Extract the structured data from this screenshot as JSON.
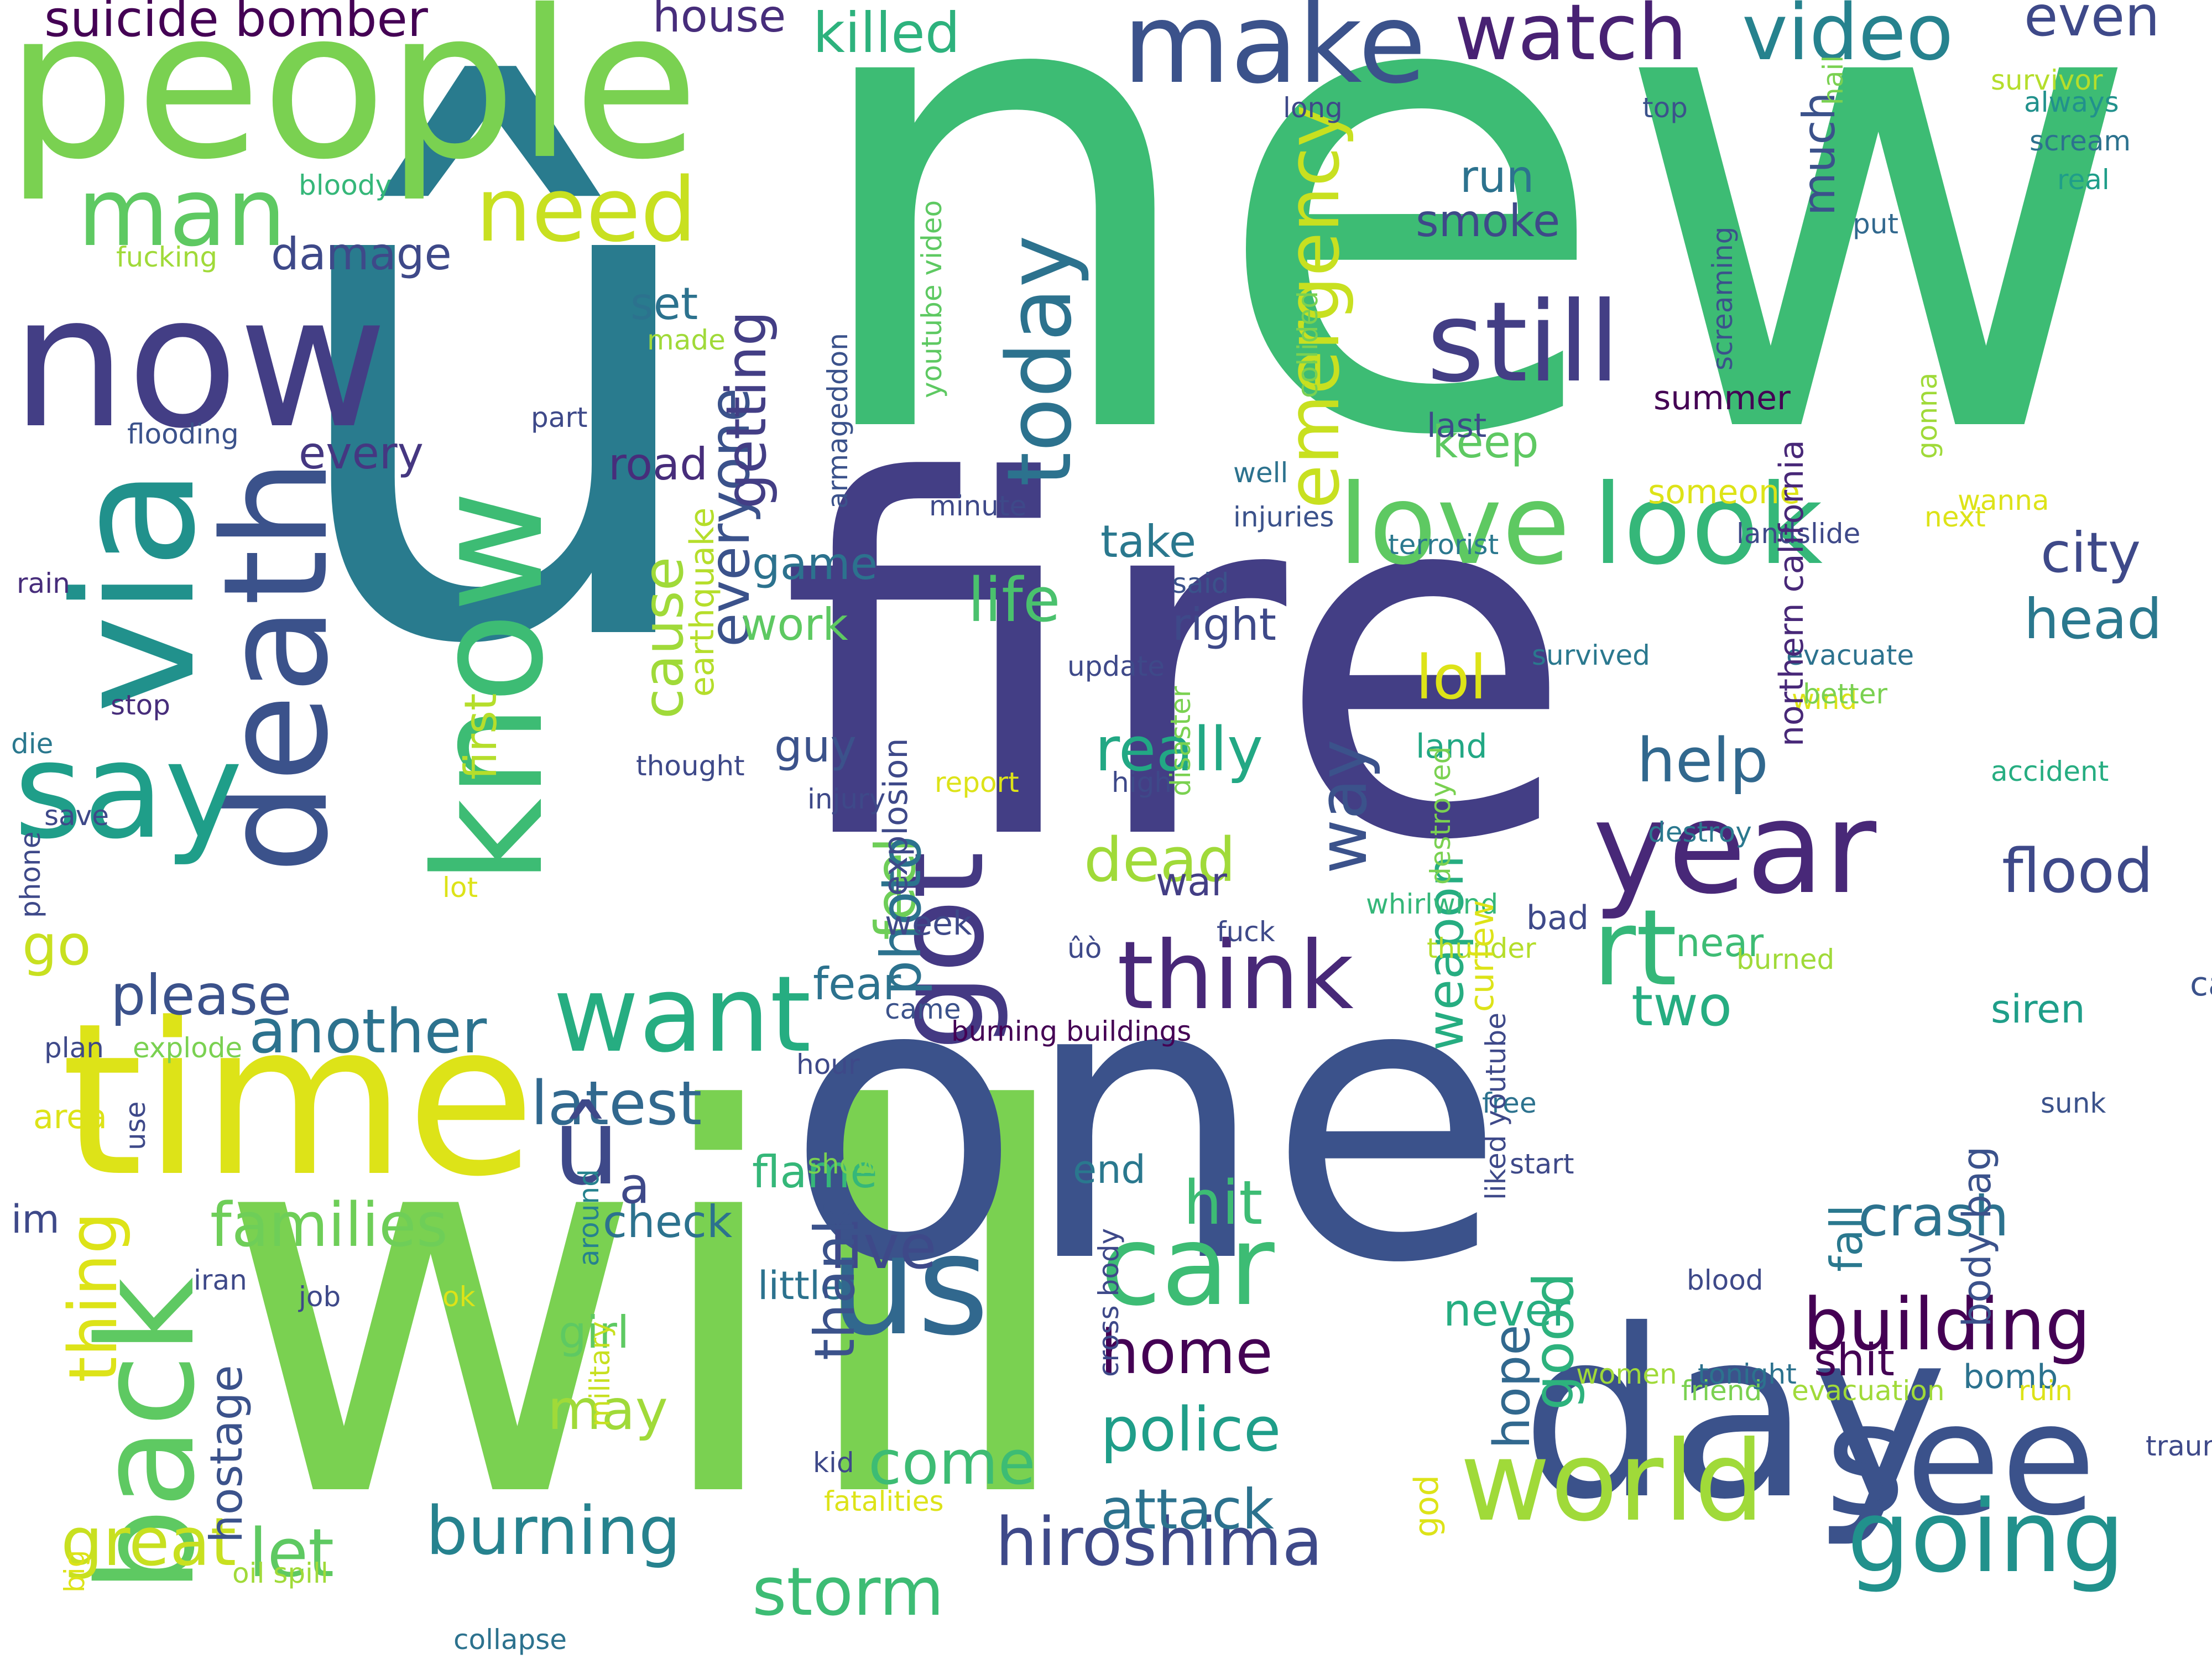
{
  "words": [
    {
      "text": "new",
      "color": "#3dbc74",
      "rotated": false
    },
    {
      "text": "û",
      "color": "#297b8e",
      "rotated": false
    },
    {
      "text": "fire",
      "color": "#433e85",
      "rotated": false
    },
    {
      "text": "will",
      "color": "#7ad151",
      "rotated": false
    },
    {
      "text": "one",
      "color": "#3b528b",
      "rotated": false
    },
    {
      "text": "people",
      "color": "#7ad151",
      "rotated": false
    },
    {
      "text": "now",
      "color": "#433e85",
      "rotated": false
    },
    {
      "text": "time",
      "color": "#dde318",
      "rotated": false
    },
    {
      "text": "day",
      "color": "#3b528b",
      "rotated": false
    },
    {
      "text": "via",
      "color": "#21918c",
      "rotated": true
    },
    {
      "text": "know",
      "color": "#3dbc74",
      "rotated": true
    },
    {
      "text": "death",
      "color": "#3b528b",
      "rotated": true
    },
    {
      "text": "back",
      "color": "#5ec962",
      "rotated": true
    },
    {
      "text": "say",
      "color": "#1f9e89",
      "rotated": false
    },
    {
      "text": "love",
      "color": "#5ec962",
      "rotated": false
    },
    {
      "text": "look",
      "color": "#35b779",
      "rotated": false
    },
    {
      "text": "us",
      "color": "#31688e",
      "rotated": false
    },
    {
      "text": "see",
      "color": "#3b528b",
      "rotated": false
    },
    {
      "text": "year",
      "color": "#482878",
      "rotated": false
    },
    {
      "text": "make",
      "color": "#3b528b",
      "rotated": false
    },
    {
      "text": "still",
      "color": "#433e85",
      "rotated": false
    },
    {
      "text": "got",
      "color": "#443983",
      "rotated": true
    },
    {
      "text": "world",
      "color": "#a0da39",
      "rotated": false
    },
    {
      "text": "going",
      "color": "#21918c",
      "rotated": false
    },
    {
      "text": "want",
      "color": "#26ad81",
      "rotated": false
    },
    {
      "text": "think",
      "color": "#482878",
      "rotated": false
    },
    {
      "text": "car",
      "color": "#3dbc74",
      "rotated": false
    },
    {
      "text": "rt",
      "color": "#35b779",
      "rotated": false
    },
    {
      "text": "building",
      "color": "#440154",
      "rotated": false
    },
    {
      "text": "watch",
      "color": "#482173",
      "rotated": false
    },
    {
      "text": "video",
      "color": "#26828e",
      "rotated": false
    },
    {
      "text": "man",
      "color": "#5ec962",
      "rotated": false
    },
    {
      "text": "need",
      "color": "#c8e020",
      "rotated": false
    },
    {
      "text": "today",
      "color": "#2c728e",
      "rotated": true
    },
    {
      "text": "emergency",
      "color": "#c8e020",
      "rotated": true
    },
    {
      "text": "way",
      "color": "#3b528b",
      "rotated": true
    },
    {
      "text": "storm",
      "color": "#3dbc74",
      "rotated": false
    },
    {
      "text": "burning",
      "color": "#26828e",
      "rotated": false
    },
    {
      "text": "great",
      "color": "#c8e020",
      "rotated": false
    },
    {
      "text": "let",
      "color": "#5ec962",
      "rotated": false
    },
    {
      "text": "hiroshima",
      "color": "#3e4989",
      "rotated": false
    },
    {
      "text": "another",
      "color": "#2c728e",
      "rotated": false
    },
    {
      "text": "latest",
      "color": "#31688e",
      "rotated": false
    },
    {
      "text": "please",
      "color": "#3b528b",
      "rotated": false
    },
    {
      "text": "families",
      "color": "#6ece58",
      "rotated": false
    },
    {
      "text": "home",
      "color": "#440154",
      "rotated": false
    },
    {
      "text": "police",
      "color": "#1f9e89",
      "rotated": false
    },
    {
      "text": "flood",
      "color": "#3e4989",
      "rotated": false
    },
    {
      "text": "help",
      "color": "#31688e",
      "rotated": false
    },
    {
      "text": "dead",
      "color": "#a0da39",
      "rotated": false
    },
    {
      "text": "really",
      "color": "#22a884",
      "rotated": false
    },
    {
      "text": "life",
      "color": "#4ac16d",
      "rotated": false
    },
    {
      "text": "live",
      "color": "#3e4989",
      "rotated": false
    },
    {
      "text": "come",
      "color": "#3dbc74",
      "rotated": false
    },
    {
      "text": "attack",
      "color": "#2c728e",
      "rotated": false
    },
    {
      "text": "hit",
      "color": "#3dbc74",
      "rotated": false
    },
    {
      "text": "lol",
      "color": "#dde318",
      "rotated": false
    },
    {
      "text": "weapon",
      "color": "#26ad81",
      "rotated": true
    },
    {
      "text": "two",
      "color": "#26ad81",
      "rotated": false
    },
    {
      "text": "crash",
      "color": "#2c728e",
      "rotated": false
    },
    {
      "text": "city",
      "color": "#3e4989",
      "rotated": false
    },
    {
      "text": "head",
      "color": "#2a788e",
      "rotated": false
    },
    {
      "text": "killed",
      "color": "#2db27d",
      "rotated": false
    },
    {
      "text": "even",
      "color": "#3e4989",
      "rotated": false
    },
    {
      "text": "suicide bomber",
      "color": "#440154",
      "rotated": false
    },
    {
      "text": "house",
      "color": "#472d7b",
      "rotated": false
    },
    {
      "text": "damage",
      "color": "#3e4989",
      "rotated": false
    },
    {
      "text": "run",
      "color": "#2c728e",
      "rotated": false
    },
    {
      "text": "smoke",
      "color": "#3e4989",
      "rotated": false
    },
    {
      "text": "much",
      "color": "#3b528b",
      "rotated": true
    },
    {
      "text": "keep",
      "color": "#5ec962",
      "rotated": false
    },
    {
      "text": "everyone",
      "color": "#3b528b",
      "rotated": true
    },
    {
      "text": "getting",
      "color": "#433e85",
      "rotated": true
    },
    {
      "text": "set",
      "color": "#2c728e",
      "rotated": false
    },
    {
      "text": "every",
      "color": "#453781",
      "rotated": false
    },
    {
      "text": "road",
      "color": "#472d7b",
      "rotated": false
    },
    {
      "text": "take",
      "color": "#2a788e",
      "rotated": false
    },
    {
      "text": "game",
      "color": "#2c728e",
      "rotated": false
    },
    {
      "text": "work",
      "color": "#5ec962",
      "rotated": false
    },
    {
      "text": "right",
      "color": "#3e4989",
      "rotated": false
    },
    {
      "text": "first",
      "color": "#b5de2b",
      "rotated": true
    },
    {
      "text": "cause",
      "color": "#a0da39",
      "rotated": true
    },
    {
      "text": "go",
      "color": "#c8e020",
      "rotated": false
    },
    {
      "text": "guy",
      "color": "#3b528b",
      "rotated": false
    },
    {
      "text": "feel",
      "color": "#6ece58",
      "rotated": true
    },
    {
      "text": "photo",
      "color": "#2c728e",
      "rotated": true
    },
    {
      "text": "war",
      "color": "#433e85",
      "rotated": false
    },
    {
      "text": "fear",
      "color": "#2c728e",
      "rotated": false
    },
    {
      "text": "near",
      "color": "#3dbc74",
      "rotated": false
    },
    {
      "text": "siren",
      "color": "#1f9e89",
      "rotated": false
    },
    {
      "text": "fall",
      "color": "#2a788e",
      "rotated": true
    },
    {
      "text": "body bag",
      "color": "#3b528b",
      "rotated": true
    },
    {
      "text": "flame",
      "color": "#35b779",
      "rotated": false
    },
    {
      "text": "check",
      "color": "#2c728e",
      "rotated": false
    },
    {
      "text": "end",
      "color": "#2a788e",
      "rotated": false
    },
    {
      "text": "im",
      "color": "#3e4989",
      "rotated": false
    },
    {
      "text": "û",
      "color": "#3e4989",
      "rotated": false
    },
    {
      "text": "a",
      "color": "#3e4989",
      "rotated": false
    },
    {
      "text": "little",
      "color": "#2c728e",
      "rotated": false
    },
    {
      "text": "girl",
      "color": "#5ec962",
      "rotated": false
    },
    {
      "text": "may",
      "color": "#a0da39",
      "rotated": false
    },
    {
      "text": "thank",
      "color": "#3b528b",
      "rotated": true
    },
    {
      "text": "hostage",
      "color": "#3b528b",
      "rotated": true
    },
    {
      "text": "thing",
      "color": "#dde318",
      "rotated": true
    },
    {
      "text": "shit",
      "color": "#440154",
      "rotated": false
    },
    {
      "text": "never",
      "color": "#26ad81",
      "rotated": false
    },
    {
      "text": "good",
      "color": "#2db27d",
      "rotated": true
    },
    {
      "text": "hope",
      "color": "#31688e",
      "rotated": true
    },
    {
      "text": "bomb",
      "color": "#2c728e",
      "rotated": false
    },
    {
      "text": "long",
      "color": "#3e4989",
      "rotated": false
    },
    {
      "text": "top",
      "color": "#3b528b",
      "rotated": false
    },
    {
      "text": "always",
      "color": "#21918c",
      "rotated": false
    },
    {
      "text": "scream",
      "color": "#2c728e",
      "rotated": false
    },
    {
      "text": "real",
      "color": "#1f9e89",
      "rotated": false
    },
    {
      "text": "survivor",
      "color": "#b5de2b",
      "rotated": false
    },
    {
      "text": "hail",
      "color": "#7ad151",
      "rotated": true
    },
    {
      "text": "put",
      "color": "#31688e",
      "rotated": false
    },
    {
      "text": "bloody",
      "color": "#35b779",
      "rotated": false
    },
    {
      "text": "fucking",
      "color": "#a0da39",
      "rotated": false
    },
    {
      "text": "made",
      "color": "#a0da39",
      "rotated": false
    },
    {
      "text": "flooding",
      "color": "#3b528b",
      "rotated": false
    },
    {
      "text": "part",
      "color": "#3e4989",
      "rotated": false
    },
    {
      "text": "youtube video",
      "color": "#5ec962",
      "rotated": true
    },
    {
      "text": "armageddon",
      "color": "#3b528b",
      "rotated": true
    },
    {
      "text": "minute",
      "color": "#3e4989",
      "rotated": false
    },
    {
      "text": "collided",
      "color": "#7ad151",
      "rotated": true
    },
    {
      "text": "screaming",
      "color": "#3b528b",
      "rotated": true
    },
    {
      "text": "last",
      "color": "#3e4989",
      "rotated": false
    },
    {
      "text": "summer",
      "color": "#440154",
      "rotated": false
    },
    {
      "text": "gonna",
      "color": "#a0da39",
      "rotated": true
    },
    {
      "text": "wanna",
      "color": "#dde318",
      "rotated": false
    },
    {
      "text": "next",
      "color": "#dde318",
      "rotated": false
    },
    {
      "text": "someone",
      "color": "#dde318",
      "rotated": false
    },
    {
      "text": "well",
      "color": "#2c728e",
      "rotated": false
    },
    {
      "text": "injuries",
      "color": "#3b528b",
      "rotated": false
    },
    {
      "text": "terrorist",
      "color": "#2a788e",
      "rotated": false
    },
    {
      "text": "landslide",
      "color": "#3e4989",
      "rotated": false
    },
    {
      "text": "rain",
      "color": "#472d7b",
      "rotated": false
    },
    {
      "text": "earthquake",
      "color": "#b5de2b",
      "rotated": true
    },
    {
      "text": "said",
      "color": "#3b528b",
      "rotated": false
    },
    {
      "text": "update",
      "color": "#3e4989",
      "rotated": false
    },
    {
      "text": "survived",
      "color": "#2a788e",
      "rotated": false
    },
    {
      "text": "evacuate",
      "color": "#2c728e",
      "rotated": false
    },
    {
      "text": "wind",
      "color": "#dde318",
      "rotated": false
    },
    {
      "text": "better",
      "color": "#7ad151",
      "rotated": false
    },
    {
      "text": "stop",
      "color": "#472d7b",
      "rotated": false
    },
    {
      "text": "die",
      "color": "#2a788e",
      "rotated": false
    },
    {
      "text": "thought",
      "color": "#3e4989",
      "rotated": false
    },
    {
      "text": "land",
      "color": "#22a884",
      "rotated": false
    },
    {
      "text": "northern california",
      "color": "#482878",
      "rotated": true
    },
    {
      "text": "call",
      "color": "#3b528b",
      "rotated": false
    },
    {
      "text": "accident",
      "color": "#26ad81",
      "rotated": false
    },
    {
      "text": "save",
      "color": "#3e4989",
      "rotated": false
    },
    {
      "text": "report",
      "color": "#dde318",
      "rotated": false
    },
    {
      "text": "high",
      "color": "#3e4989",
      "rotated": false
    },
    {
      "text": "injury",
      "color": "#3e4989",
      "rotated": false
    },
    {
      "text": "disaster",
      "color": "#7ad151",
      "rotated": true
    },
    {
      "text": "destroyed",
      "color": "#7ad151",
      "rotated": true
    },
    {
      "text": "bad",
      "color": "#3e4989",
      "rotated": false
    },
    {
      "text": "destroy",
      "color": "#2a788e",
      "rotated": false
    },
    {
      "text": "lot",
      "color": "#dde318",
      "rotated": false
    },
    {
      "text": "whirlwind",
      "color": "#35b779",
      "rotated": false
    },
    {
      "text": "phone",
      "color": "#3e4989",
      "rotated": true
    },
    {
      "text": "explosion",
      "color": "#3e4989",
      "rotated": true
    },
    {
      "text": "week",
      "color": "#3e4989",
      "rotated": false
    },
    {
      "text": "fuck",
      "color": "#3e4989",
      "rotated": false
    },
    {
      "text": "ûò",
      "color": "#3e4989",
      "rotated": false
    },
    {
      "text": "thunder",
      "color": "#b5de2b",
      "rotated": false
    },
    {
      "text": "burned",
      "color": "#a0da39",
      "rotated": false
    },
    {
      "text": "came",
      "color": "#3b528b",
      "rotated": false
    },
    {
      "text": "hour",
      "color": "#3e4989",
      "rotated": false
    },
    {
      "text": "plan",
      "color": "#3e4989",
      "rotated": false
    },
    {
      "text": "explode",
      "color": "#7ad151",
      "rotated": false
    },
    {
      "text": "burning buildings",
      "color": "#440154",
      "rotated": false
    },
    {
      "text": "curfew",
      "color": "#dde318",
      "rotated": true
    },
    {
      "text": "area",
      "color": "#dde318",
      "rotated": false
    },
    {
      "text": "sunk",
      "color": "#3b528b",
      "rotated": false
    },
    {
      "text": "free",
      "color": "#2c728e",
      "rotated": false
    },
    {
      "text": "start",
      "color": "#3e4989",
      "rotated": false
    },
    {
      "text": "liked youtube",
      "color": "#3e4989",
      "rotated": true
    },
    {
      "text": "blood",
      "color": "#3e4989",
      "rotated": false
    },
    {
      "text": "show",
      "color": "#7ad151",
      "rotated": false
    },
    {
      "text": "use",
      "color": "#3e4989",
      "rotated": true
    },
    {
      "text": "iran",
      "color": "#3e4989",
      "rotated": false
    },
    {
      "text": "job",
      "color": "#3e4989",
      "rotated": false
    },
    {
      "text": "ok",
      "color": "#dde318",
      "rotated": false
    },
    {
      "text": "around",
      "color": "#26828e",
      "rotated": true
    },
    {
      "text": "cross body",
      "color": "#3e4989",
      "rotated": true
    },
    {
      "text": "god",
      "color": "#dde318",
      "rotated": true
    },
    {
      "text": "friend",
      "color": "#7ad151",
      "rotated": false
    },
    {
      "text": "ruin",
      "color": "#dde318",
      "rotated": false
    },
    {
      "text": "trauma",
      "color": "#3e4989",
      "rotated": false
    },
    {
      "text": "women",
      "color": "#a0da39",
      "rotated": false
    },
    {
      "text": "tonight",
      "color": "#2c728e",
      "rotated": false
    },
    {
      "text": "evacuation",
      "color": "#a0da39",
      "rotated": false
    },
    {
      "text": "military",
      "color": "#c8e020",
      "rotated": true
    },
    {
      "text": "kid",
      "color": "#3e4989",
      "rotated": false
    },
    {
      "text": "oil spill",
      "color": "#a0da39",
      "rotated": false
    },
    {
      "text": "fatalities",
      "color": "#dde318",
      "rotated": false
    },
    {
      "text": "big",
      "color": "#dde318",
      "rotated": true
    },
    {
      "text": "collapse",
      "color": "#2c728e",
      "rotated": false
    }
  ]
}
